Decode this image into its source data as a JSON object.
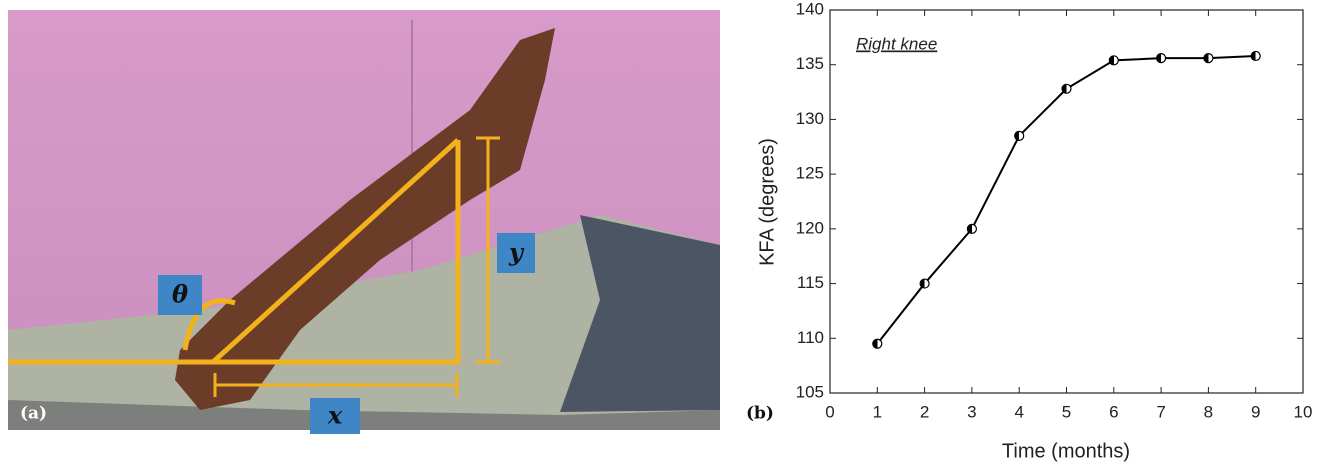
{
  "photo": {
    "panel_label": "(a)",
    "angle_label": "θ",
    "height_label": "y",
    "base_label": "x"
  },
  "chart_data": {
    "type": "line",
    "panel_label": "(b)",
    "annotation": "Right knee",
    "x_label": "Time (months)",
    "y_label": "KFA (degrees)",
    "x": [
      1,
      2,
      3,
      4,
      5,
      6,
      7,
      8,
      9
    ],
    "series": [
      {
        "color": "#000000",
        "values": [
          109.5,
          115,
          120,
          128.5,
          132.8,
          135.4,
          135.6,
          135.6,
          135.8
        ]
      }
    ],
    "xlim": [
      0,
      10
    ],
    "xticks": [
      0,
      1,
      2,
      3,
      4,
      5,
      6,
      7,
      8,
      9,
      10
    ],
    "ylim": [
      105,
      140
    ],
    "yticks": [
      105,
      110,
      115,
      120,
      125,
      130,
      135,
      140
    ]
  }
}
